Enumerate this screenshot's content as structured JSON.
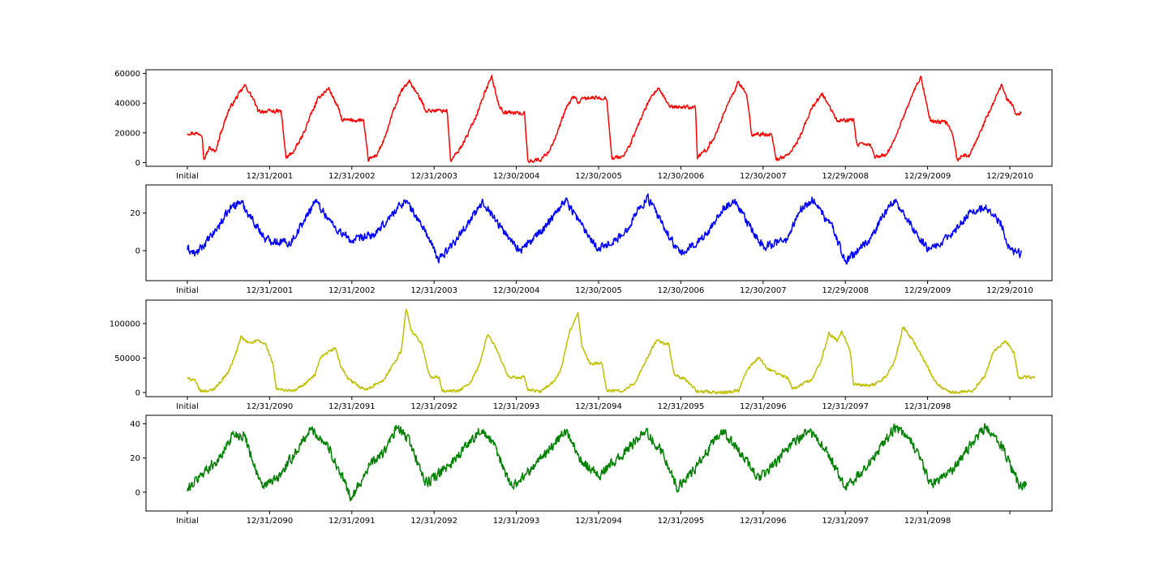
{
  "chart_data": [
    {
      "type": "line",
      "color": "#ff0000",
      "x_tick_labels": [
        "Initial",
        "12/31/2001",
        "12/31/2002",
        "12/31/2003",
        "12/30/2004",
        "12/30/2005",
        "12/30/2006",
        "12/30/2007",
        "12/29/2008",
        "12/29/2009",
        "12/29/2010"
      ],
      "y_ticks": [
        "0",
        "20000",
        "40000",
        "60000"
      ],
      "ylim": [
        -2500,
        62500
      ],
      "keypoints": [
        [
          0,
          20000
        ],
        [
          0.18,
          19500
        ],
        [
          0.2,
          2000
        ],
        [
          0.27,
          10000
        ],
        [
          0.34,
          7000
        ],
        [
          0.4,
          19000
        ],
        [
          0.5,
          35000
        ],
        [
          0.6,
          44000
        ],
        [
          0.7,
          52000
        ],
        [
          0.8,
          43000
        ],
        [
          0.86,
          34500
        ],
        [
          1.14,
          34500
        ],
        [
          1.2,
          3000
        ],
        [
          1.3,
          8000
        ],
        [
          1.4,
          18000
        ],
        [
          1.5,
          32000
        ],
        [
          1.6,
          44000
        ],
        [
          1.72,
          50000
        ],
        [
          1.84,
          36000
        ],
        [
          1.88,
          28500
        ],
        [
          2.14,
          28500
        ],
        [
          2.2,
          2000
        ],
        [
          2.3,
          5000
        ],
        [
          2.4,
          16000
        ],
        [
          2.5,
          34000
        ],
        [
          2.6,
          48000
        ],
        [
          2.7,
          55000
        ],
        [
          2.86,
          40000
        ],
        [
          2.9,
          35000
        ],
        [
          3.16,
          35000
        ],
        [
          3.2,
          1000
        ],
        [
          3.3,
          8000
        ],
        [
          3.4,
          18000
        ],
        [
          3.5,
          30000
        ],
        [
          3.6,
          45000
        ],
        [
          3.7,
          58000
        ],
        [
          3.78,
          40000
        ],
        [
          3.84,
          34000
        ],
        [
          4.1,
          33000
        ],
        [
          4.14,
          1000
        ],
        [
          4.3,
          2000
        ],
        [
          4.4,
          8000
        ],
        [
          4.5,
          20000
        ],
        [
          4.6,
          36000
        ],
        [
          4.7,
          45000
        ],
        [
          4.76,
          40000
        ],
        [
          4.82,
          43500
        ],
        [
          5.1,
          43500
        ],
        [
          5.16,
          3000
        ],
        [
          5.3,
          4000
        ],
        [
          5.4,
          14000
        ],
        [
          5.5,
          28000
        ],
        [
          5.6,
          40000
        ],
        [
          5.72,
          50000
        ],
        [
          5.84,
          40000
        ],
        [
          5.88,
          37500
        ],
        [
          6.18,
          37500
        ],
        [
          6.2,
          3000
        ],
        [
          6.3,
          8000
        ],
        [
          6.4,
          16000
        ],
        [
          6.5,
          30000
        ],
        [
          6.6,
          43000
        ],
        [
          6.7,
          54000
        ],
        [
          6.8,
          46000
        ],
        [
          6.86,
          19000
        ],
        [
          7.1,
          19000
        ],
        [
          7.16,
          2000
        ],
        [
          7.3,
          5000
        ],
        [
          7.4,
          12000
        ],
        [
          7.5,
          24000
        ],
        [
          7.6,
          38000
        ],
        [
          7.72,
          46000
        ],
        [
          7.84,
          34000
        ],
        [
          7.9,
          28500
        ],
        [
          8.1,
          28500
        ],
        [
          8.14,
          12000
        ],
        [
          8.3,
          12000
        ],
        [
          8.36,
          4000
        ],
        [
          8.5,
          5000
        ],
        [
          8.6,
          16000
        ],
        [
          8.7,
          30000
        ],
        [
          8.8,
          44000
        ],
        [
          8.92,
          58000
        ],
        [
          9,
          36000
        ],
        [
          9.04,
          27500
        ],
        [
          9.24,
          27000
        ],
        [
          9.3,
          20000
        ],
        [
          9.36,
          2000
        ],
        [
          9.44,
          5000
        ],
        [
          9.5,
          4000
        ],
        [
          9.6,
          15000
        ],
        [
          9.7,
          28000
        ],
        [
          9.8,
          40000
        ],
        [
          9.9,
          52000
        ],
        [
          9.96,
          43000
        ],
        [
          10.04,
          38000
        ],
        [
          10.06,
          33000
        ],
        [
          10.14,
          33500
        ]
      ],
      "noise_amplitude": 1800
    },
    {
      "type": "line",
      "color": "#0000ff",
      "x_tick_labels": [
        "Initial",
        "12/31/2001",
        "12/31/2002",
        "12/31/2003",
        "12/30/2004",
        "12/30/2005",
        "12/30/2006",
        "12/30/2007",
        "12/29/2008",
        "12/29/2009",
        "12/29/2010"
      ],
      "y_ticks": [
        "0",
        "20"
      ],
      "ylim": [
        -16,
        35
      ],
      "keypoints": [
        [
          0,
          1
        ],
        [
          0.1,
          -2
        ],
        [
          0.3,
          8
        ],
        [
          0.55,
          24
        ],
        [
          0.65,
          26
        ],
        [
          0.8,
          16
        ],
        [
          0.95,
          6
        ],
        [
          1.25,
          4
        ],
        [
          1.45,
          18
        ],
        [
          1.55,
          27
        ],
        [
          1.8,
          12
        ],
        [
          2,
          5
        ],
        [
          2.3,
          9
        ],
        [
          2.5,
          20
        ],
        [
          2.65,
          27
        ],
        [
          2.9,
          10
        ],
        [
          3.05,
          -5
        ],
        [
          3.25,
          5
        ],
        [
          3.5,
          20
        ],
        [
          3.6,
          26
        ],
        [
          3.85,
          10
        ],
        [
          4.05,
          0
        ],
        [
          4.3,
          10
        ],
        [
          4.5,
          22
        ],
        [
          4.6,
          27
        ],
        [
          4.85,
          10
        ],
        [
          5,
          1
        ],
        [
          5.3,
          8
        ],
        [
          5.45,
          20
        ],
        [
          5.6,
          28
        ],
        [
          5.85,
          8
        ],
        [
          6,
          -2
        ],
        [
          6.3,
          8
        ],
        [
          6.5,
          22
        ],
        [
          6.65,
          26
        ],
        [
          6.85,
          12
        ],
        [
          7,
          2
        ],
        [
          7.3,
          6
        ],
        [
          7.45,
          22
        ],
        [
          7.6,
          27
        ],
        [
          7.85,
          12
        ],
        [
          8,
          -6
        ],
        [
          8.3,
          6
        ],
        [
          8.5,
          22
        ],
        [
          8.6,
          27
        ],
        [
          8.85,
          10
        ],
        [
          9,
          1
        ],
        [
          9.3,
          8
        ],
        [
          9.5,
          20
        ],
        [
          9.7,
          24
        ],
        [
          9.9,
          14
        ],
        [
          10,
          0
        ],
        [
          10.14,
          -2
        ]
      ],
      "noise_amplitude": 3
    },
    {
      "type": "line",
      "color": "#bfbf00",
      "x_tick_labels": [
        "Initial",
        "12/31/2090",
        "12/31/2091",
        "12/31/2092",
        "12/31/2093",
        "12/31/2094",
        "12/31/2095",
        "12/31/2096",
        "12/31/2097",
        "12/31/2098",
        ""
      ],
      "y_ticks": [
        "0",
        "50000",
        "100000"
      ],
      "ylim": [
        -6000,
        134000
      ],
      "keypoints": [
        [
          0,
          20000
        ],
        [
          0.08,
          19000
        ],
        [
          0.16,
          2000
        ],
        [
          0.3,
          3000
        ],
        [
          0.4,
          15000
        ],
        [
          0.5,
          30000
        ],
        [
          0.6,
          60000
        ],
        [
          0.65,
          80000
        ],
        [
          0.74,
          72000
        ],
        [
          0.85,
          75000
        ],
        [
          0.95,
          70000
        ],
        [
          1.04,
          42000
        ],
        [
          1.08,
          5000
        ],
        [
          1.3,
          2000
        ],
        [
          1.45,
          15000
        ],
        [
          1.55,
          25000
        ],
        [
          1.62,
          50000
        ],
        [
          1.8,
          65000
        ],
        [
          1.86,
          40000
        ],
        [
          1.95,
          20000
        ],
        [
          2.1,
          8000
        ],
        [
          2.2,
          5000
        ],
        [
          2.4,
          20000
        ],
        [
          2.6,
          60000
        ],
        [
          2.66,
          122000
        ],
        [
          2.72,
          90000
        ],
        [
          2.85,
          70000
        ],
        [
          2.95,
          22000
        ],
        [
          3.06,
          22000
        ],
        [
          3.1,
          2000
        ],
        [
          3.3,
          2000
        ],
        [
          3.45,
          15000
        ],
        [
          3.55,
          40000
        ],
        [
          3.65,
          85000
        ],
        [
          3.75,
          65000
        ],
        [
          3.9,
          22000
        ],
        [
          4.1,
          22000
        ],
        [
          4.14,
          3000
        ],
        [
          4.3,
          2000
        ],
        [
          4.45,
          15000
        ],
        [
          4.55,
          35000
        ],
        [
          4.65,
          90000
        ],
        [
          4.75,
          115000
        ],
        [
          4.8,
          65000
        ],
        [
          4.9,
          42000
        ],
        [
          5.04,
          42000
        ],
        [
          5.1,
          3000
        ],
        [
          5.3,
          2000
        ],
        [
          5.45,
          15000
        ],
        [
          5.55,
          40000
        ],
        [
          5.7,
          75000
        ],
        [
          5.85,
          70000
        ],
        [
          5.92,
          25000
        ],
        [
          6.04,
          20000
        ],
        [
          6.2,
          2000
        ],
        [
          6.5,
          0
        ],
        [
          6.7,
          3000
        ],
        [
          6.8,
          33000
        ],
        [
          6.95,
          50000
        ],
        [
          7.05,
          35000
        ],
        [
          7.2,
          25000
        ],
        [
          7.3,
          22000
        ],
        [
          7.36,
          5000
        ],
        [
          7.6,
          20000
        ],
        [
          7.7,
          45000
        ],
        [
          7.8,
          85000
        ],
        [
          7.9,
          75000
        ],
        [
          7.96,
          88000
        ],
        [
          8.06,
          60000
        ],
        [
          8.1,
          12000
        ],
        [
          8.3,
          10000
        ],
        [
          8.4,
          15000
        ],
        [
          8.5,
          25000
        ],
        [
          8.6,
          45000
        ],
        [
          8.7,
          95000
        ],
        [
          8.8,
          80000
        ],
        [
          8.94,
          50000
        ],
        [
          9.1,
          15000
        ],
        [
          9.2,
          5000
        ],
        [
          9.3,
          0
        ],
        [
          9.55,
          2000
        ],
        [
          9.7,
          25000
        ],
        [
          9.8,
          60000
        ],
        [
          9.95,
          75000
        ],
        [
          10.05,
          58000
        ],
        [
          10.1,
          22000
        ],
        [
          10.3,
          22000
        ]
      ],
      "noise_amplitude": 3000
    },
    {
      "type": "line",
      "color": "#008000",
      "x_tick_labels": [
        "Initial",
        "12/31/2090",
        "12/31/2091",
        "12/31/2092",
        "12/31/2093",
        "12/31/2094",
        "12/31/2095",
        "12/31/2096",
        "12/31/2097",
        "12/31/2098",
        ""
      ],
      "y_ticks": [
        "0",
        "20",
        "40"
      ],
      "ylim": [
        -11,
        45
      ],
      "keypoints": [
        [
          0,
          1
        ],
        [
          0.2,
          12
        ],
        [
          0.4,
          20
        ],
        [
          0.55,
          34
        ],
        [
          0.7,
          33
        ],
        [
          0.9,
          3
        ],
        [
          1.1,
          8
        ],
        [
          1.3,
          22
        ],
        [
          1.5,
          37
        ],
        [
          1.7,
          28
        ],
        [
          1.85,
          12
        ],
        [
          2,
          -4
        ],
        [
          2.2,
          15
        ],
        [
          2.4,
          24
        ],
        [
          2.55,
          38
        ],
        [
          2.7,
          30
        ],
        [
          2.9,
          5
        ],
        [
          3.1,
          12
        ],
        [
          3.3,
          22
        ],
        [
          3.55,
          36
        ],
        [
          3.7,
          30
        ],
        [
          3.95,
          3
        ],
        [
          4.1,
          10
        ],
        [
          4.3,
          20
        ],
        [
          4.6,
          36
        ],
        [
          4.8,
          18
        ],
        [
          5,
          10
        ],
        [
          5.3,
          22
        ],
        [
          5.55,
          36
        ],
        [
          5.75,
          26
        ],
        [
          5.95,
          3
        ],
        [
          6.2,
          15
        ],
        [
          6.5,
          36
        ],
        [
          6.7,
          24
        ],
        [
          6.95,
          8
        ],
        [
          7.1,
          14
        ],
        [
          7.3,
          26
        ],
        [
          7.55,
          36
        ],
        [
          7.75,
          26
        ],
        [
          8,
          3
        ],
        [
          8.2,
          12
        ],
        [
          8.4,
          24
        ],
        [
          8.6,
          38
        ],
        [
          8.8,
          30
        ],
        [
          9.05,
          4
        ],
        [
          9.3,
          12
        ],
        [
          9.5,
          26
        ],
        [
          9.7,
          38
        ],
        [
          9.9,
          28
        ],
        [
          10.1,
          5
        ],
        [
          10.2,
          4
        ]
      ],
      "noise_amplitude": 4
    }
  ]
}
